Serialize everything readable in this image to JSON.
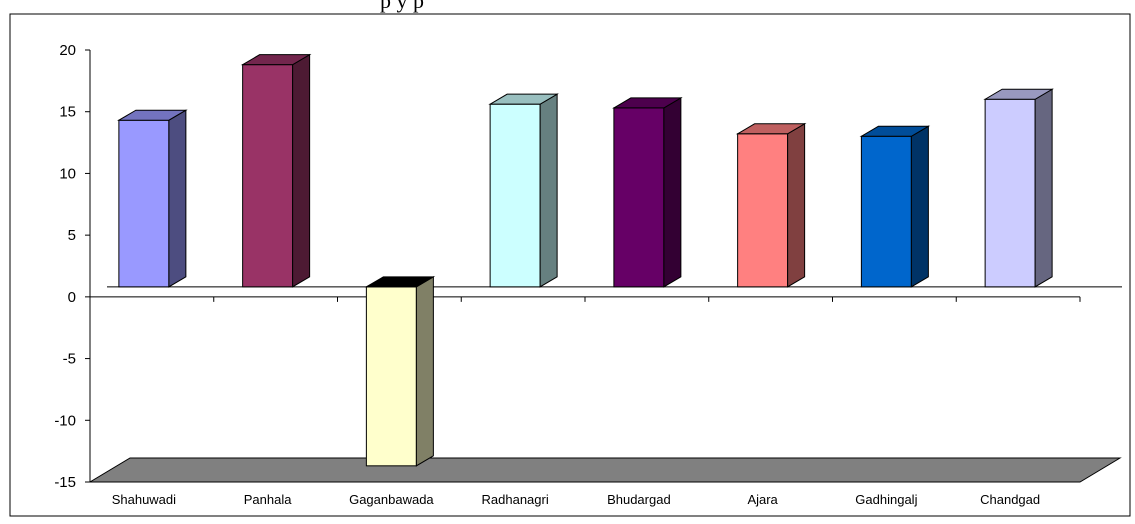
{
  "header": {
    "text": "p                                    y                              p"
  },
  "chart_data": {
    "type": "bar",
    "categories": [
      "Shahuwadi",
      "Panhala",
      "Gaganbawada",
      "Radhanagri",
      "Bhudargad",
      "Ajara",
      "Gadhingalj",
      "Chandgad"
    ],
    "values": [
      13.5,
      18,
      -14.5,
      14.8,
      14.5,
      12.4,
      12.2,
      15.2
    ],
    "colors": [
      "#9999ff",
      "#993366",
      "#ffffcc",
      "#ccffff",
      "#660066",
      "#ff8080",
      "#0066cc",
      "#ccccff"
    ],
    "ylim": [
      -15,
      20
    ],
    "yticks": [
      20,
      15,
      10,
      5,
      0,
      -5,
      -10,
      -15
    ],
    "title": "",
    "xlabel": "",
    "ylabel": "",
    "grid": false,
    "floor_color": "#808080"
  }
}
